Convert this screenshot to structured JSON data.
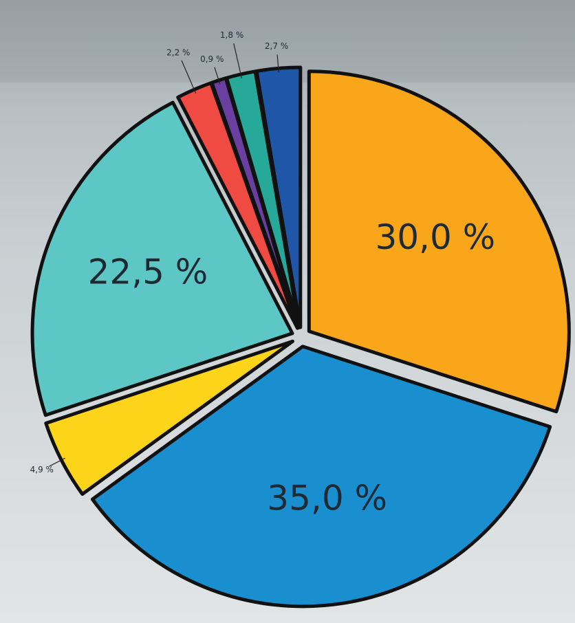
{
  "chart_data": {
    "type": "pie",
    "values": [
      30.0,
      35.0,
      4.9,
      22.5,
      2.2,
      0.9,
      1.8,
      2.7
    ],
    "value_labels": [
      "30,0 %",
      "35,0 %",
      "4,9 %",
      "22,5 %",
      "2,2 %",
      "0,9 %",
      "1,8 %",
      "2,7 %"
    ],
    "colors": [
      "#f9a61b",
      "#1a8fd0",
      "#fcd419",
      "#5cc7c4",
      "#ef4b42",
      "#6b3fa0",
      "#27a99a",
      "#1f56a8"
    ]
  }
}
